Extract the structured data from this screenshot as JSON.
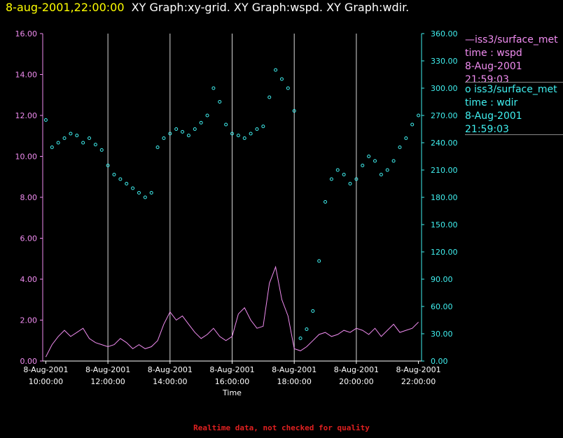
{
  "header": {
    "date": "8-aug-2001,22:00:00",
    "graphs": "XY Graph:xy-grid.  XY Graph:wspd.  XY Graph:wdir."
  },
  "legend": {
    "wspd": {
      "line1": "—iss3/surface_met",
      "line2": "time : wspd",
      "line3": "8-Aug-2001",
      "line4": "21:59:03"
    },
    "wdir": {
      "line1": "o  iss3/surface_met",
      "line2": "time : wdir",
      "line3": "8-Aug-2001",
      "line4": "21:59:03"
    }
  },
  "footer": "Realtime data, not checked for quality",
  "chart_data": {
    "type": "line",
    "xlabel": "Time",
    "x_ticks": [
      {
        "hour": 10,
        "date": "8-Aug-2001",
        "time": "10:00:00"
      },
      {
        "hour": 12,
        "date": "8-Aug-2001",
        "time": "12:00:00"
      },
      {
        "hour": 14,
        "date": "8-Aug-2001",
        "time": "14:00:00"
      },
      {
        "hour": 16,
        "date": "8-Aug-2001",
        "time": "16:00:00"
      },
      {
        "hour": 18,
        "date": "8-Aug-2001",
        "time": "18:00:00"
      },
      {
        "hour": 20,
        "date": "8-Aug-2001",
        "time": "20:00:00"
      },
      {
        "hour": 22,
        "date": "8-Aug-2001",
        "time": "22:00:00"
      }
    ],
    "xlim": [
      9.9,
      22.1
    ],
    "y_left": {
      "lim": [
        0,
        16
      ],
      "ticks": [
        "0.00",
        "2.00",
        "4.00",
        "6.00",
        "8.00",
        "10.00",
        "12.00",
        "14.00",
        "16.00"
      ],
      "color": "#f08cf0"
    },
    "y_right": {
      "lim": [
        0,
        360
      ],
      "ticks": [
        "0.00",
        "30.00",
        "60.00",
        "90.00",
        "120.00",
        "150.00",
        "180.00",
        "210.00",
        "240.00",
        "270.00",
        "300.00",
        "330.00",
        "360.00"
      ],
      "color": "#40f0f0"
    },
    "grid": "vertical",
    "series": [
      {
        "axis": "left",
        "color": "#f08cf0",
        "style": "line",
        "x": [
          10.0,
          10.2,
          10.4,
          10.6,
          10.8,
          11.0,
          11.2,
          11.4,
          11.6,
          11.8,
          12.0,
          12.2,
          12.4,
          12.6,
          12.8,
          13.0,
          13.2,
          13.4,
          13.6,
          13.8,
          14.0,
          14.2,
          14.4,
          14.6,
          14.8,
          15.0,
          15.2,
          15.4,
          15.6,
          15.8,
          16.0,
          16.2,
          16.4,
          16.6,
          16.8,
          17.0,
          17.2,
          17.4,
          17.6,
          17.8,
          18.0,
          18.2,
          18.4,
          18.6,
          18.8,
          19.0,
          19.2,
          19.4,
          19.6,
          19.8,
          20.0,
          20.2,
          20.4,
          20.6,
          20.8,
          21.0,
          21.2,
          21.4,
          21.6,
          21.8,
          22.0
        ],
        "values": [
          0.2,
          0.8,
          1.2,
          1.5,
          1.2,
          1.4,
          1.6,
          1.1,
          0.9,
          0.8,
          0.7,
          0.8,
          1.1,
          0.9,
          0.6,
          0.8,
          0.6,
          0.7,
          1.0,
          1.8,
          2.4,
          2.0,
          2.2,
          1.8,
          1.4,
          1.1,
          1.3,
          1.6,
          1.2,
          1.0,
          1.2,
          2.3,
          2.6,
          2.0,
          1.6,
          1.7,
          3.8,
          4.6,
          3.0,
          2.2,
          0.6,
          0.5,
          0.7,
          1.0,
          1.3,
          1.4,
          1.2,
          1.3,
          1.5,
          1.4,
          1.6,
          1.5,
          1.3,
          1.6,
          1.2,
          1.5,
          1.8,
          1.4,
          1.5,
          1.6,
          1.9
        ]
      },
      {
        "axis": "right",
        "color": "#40f0f0",
        "style": "markers",
        "x": [
          10.0,
          10.2,
          10.4,
          10.6,
          10.8,
          11.0,
          11.2,
          11.4,
          11.6,
          11.8,
          12.0,
          12.2,
          12.4,
          12.6,
          12.8,
          13.0,
          13.2,
          13.4,
          13.6,
          13.8,
          14.0,
          14.2,
          14.4,
          14.6,
          14.8,
          15.0,
          15.2,
          15.4,
          15.6,
          15.8,
          16.0,
          16.2,
          16.4,
          16.6,
          16.8,
          17.0,
          17.2,
          17.4,
          17.6,
          17.8,
          18.0,
          18.2,
          18.4,
          18.6,
          18.8,
          19.0,
          19.2,
          19.4,
          19.6,
          19.8,
          20.0,
          20.2,
          20.4,
          20.6,
          20.8,
          21.0,
          21.2,
          21.4,
          21.6,
          21.8,
          22.0
        ],
        "values": [
          265,
          235,
          240,
          245,
          250,
          248,
          240,
          245,
          238,
          232,
          215,
          205,
          200,
          195,
          190,
          185,
          180,
          185,
          235,
          245,
          250,
          255,
          252,
          248,
          255,
          262,
          270,
          300,
          285,
          260,
          250,
          248,
          245,
          250,
          255,
          258,
          290,
          320,
          310,
          300,
          275,
          25,
          35,
          55,
          110,
          175,
          200,
          210,
          205,
          195,
          200,
          215,
          225,
          220,
          205,
          210,
          220,
          235,
          245,
          260,
          270
        ]
      }
    ]
  }
}
